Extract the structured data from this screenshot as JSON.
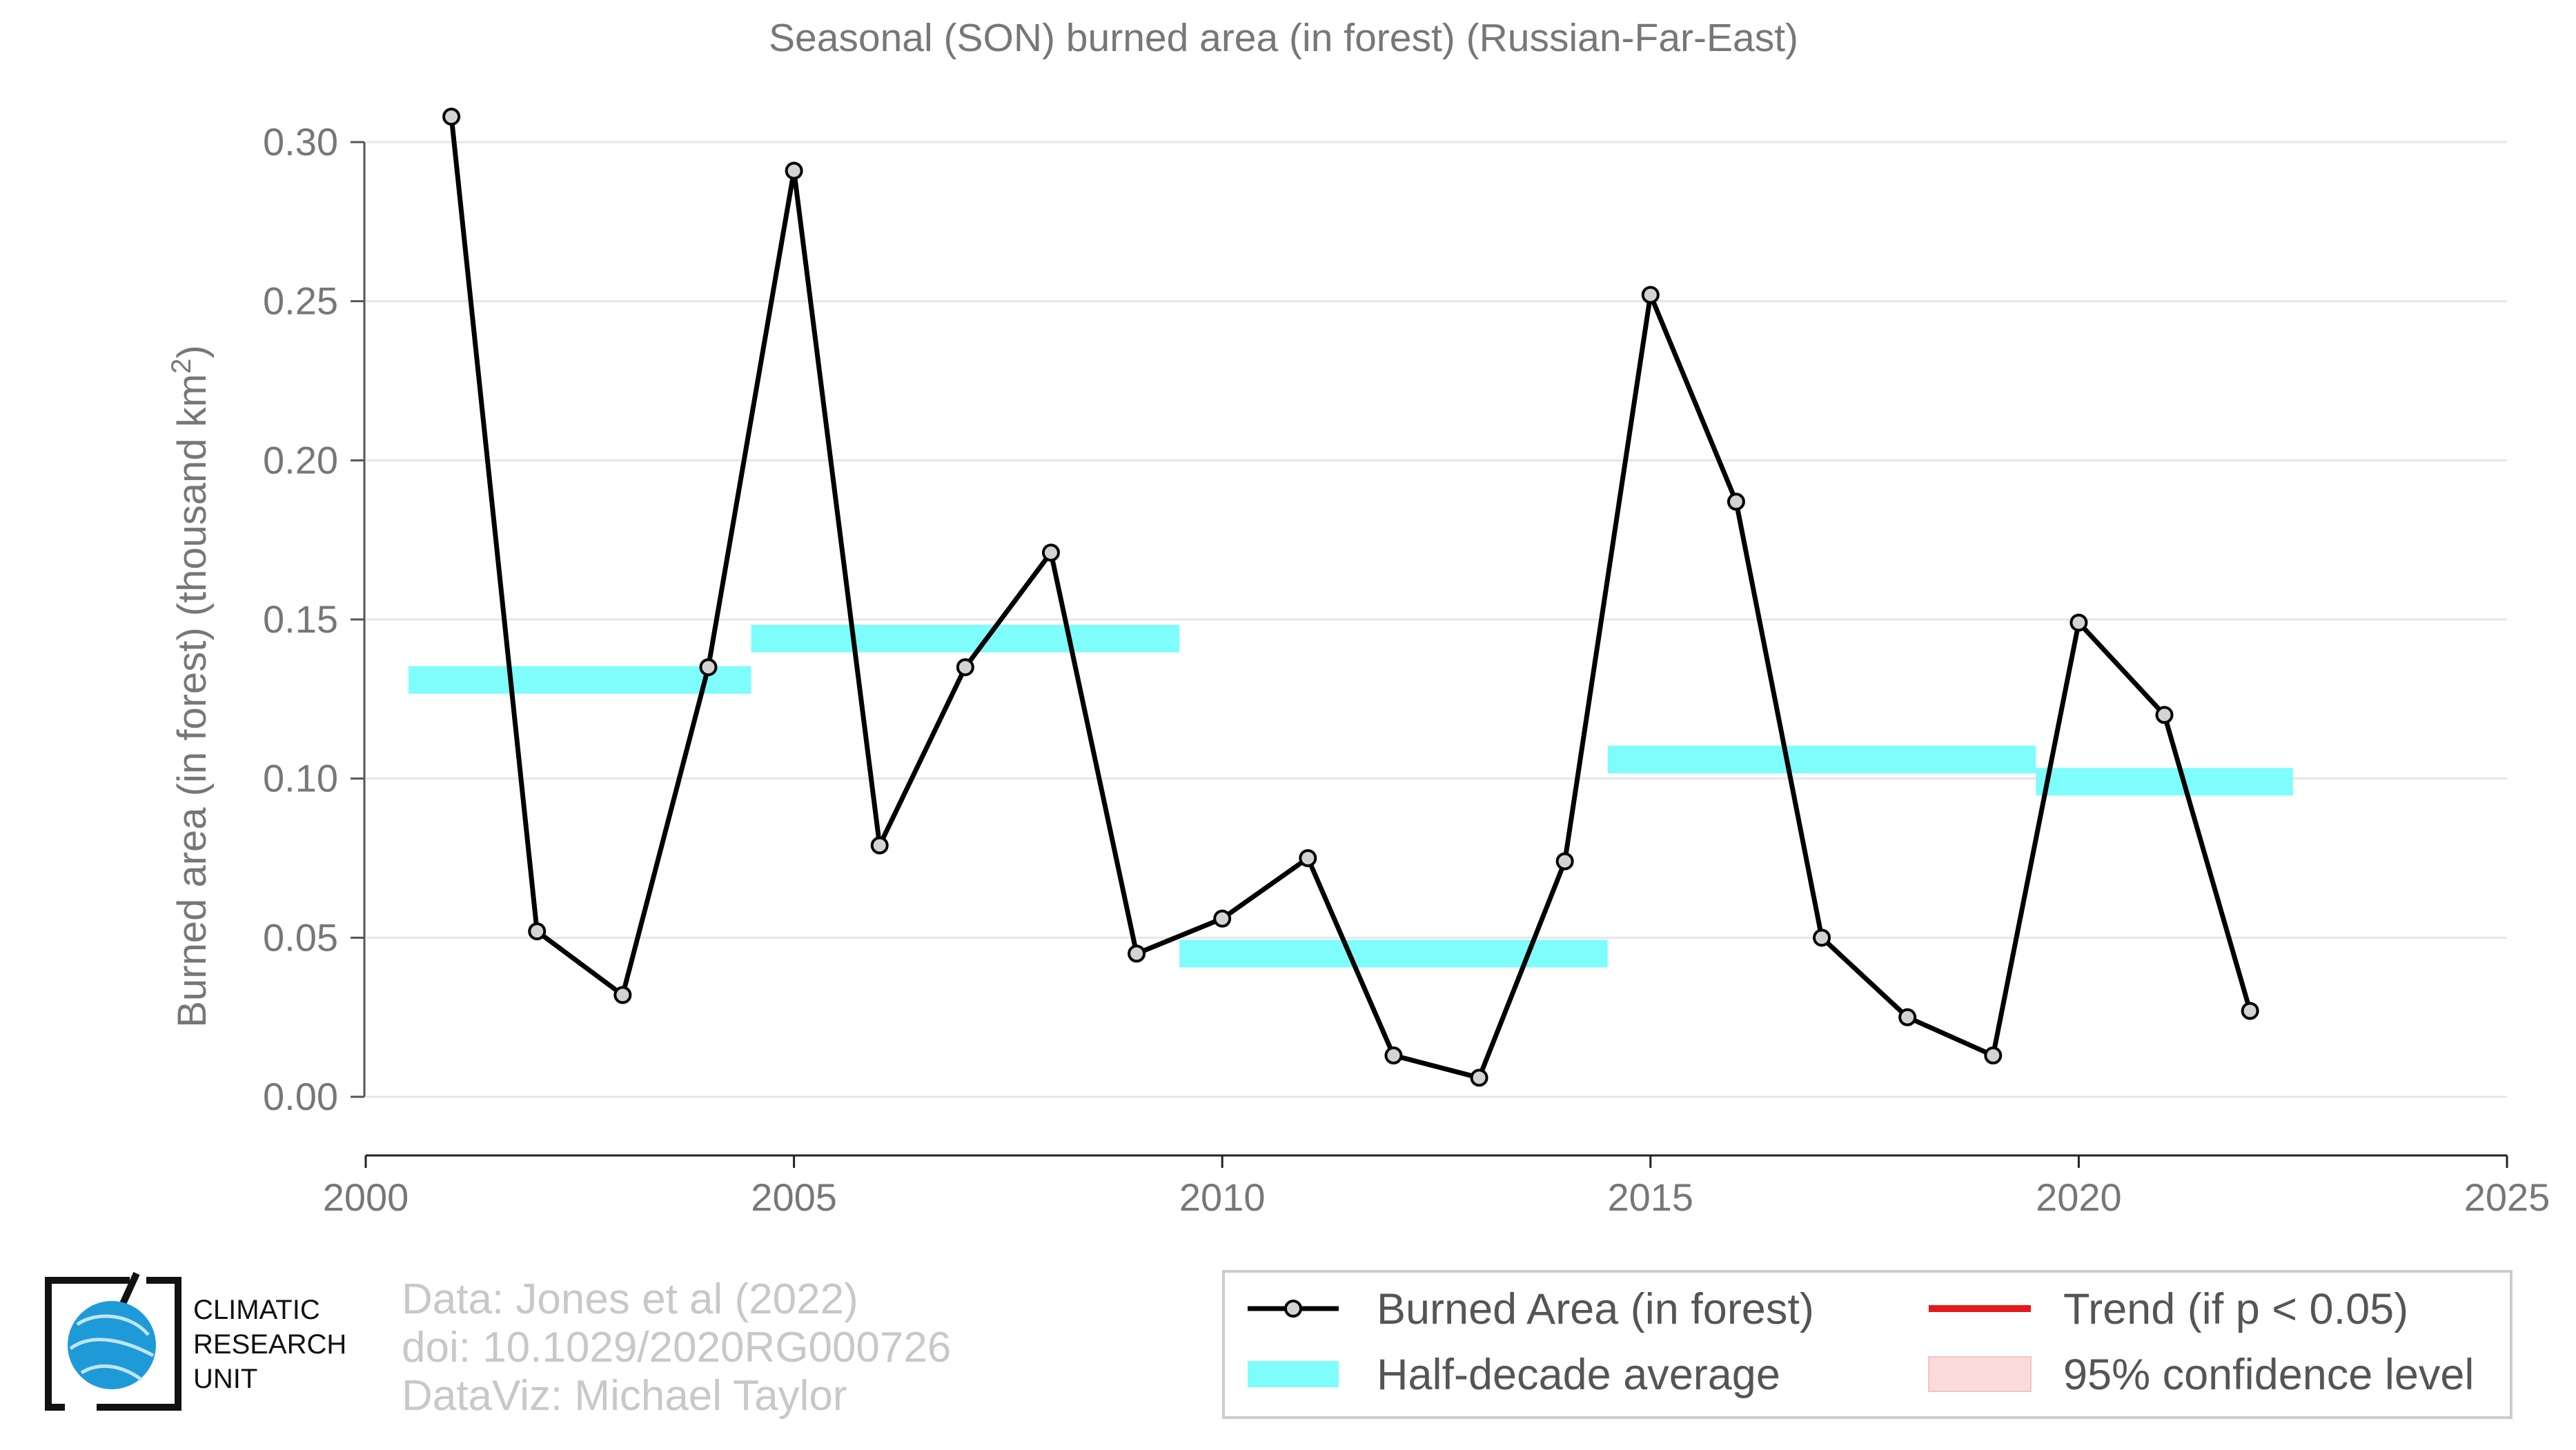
{
  "chart_data": {
    "type": "line",
    "title": "Seasonal (SON) burned area (in forest) (Russian-Far-East)",
    "ylabel": "Burned area (in forest) (thousand km",
    "ylabel_sup": "2",
    "ylabel_end": ")",
    "xlabel": "",
    "xlim": [
      2000,
      2025
    ],
    "ylim": [
      0.0,
      0.3
    ],
    "x_ticks": [
      2000,
      2005,
      2010,
      2015,
      2020,
      2025
    ],
    "y_ticks": [
      0.0,
      0.05,
      0.1,
      0.15,
      0.2,
      0.25,
      0.3
    ],
    "y_tick_labels": [
      "0.00",
      "0.05",
      "0.10",
      "0.15",
      "0.20",
      "0.25",
      "0.30"
    ],
    "grid": "horizontal",
    "series": [
      {
        "name": "Burned Area (in forest)",
        "color": "#000000",
        "x": [
          2001,
          2002,
          2003,
          2004,
          2005,
          2006,
          2007,
          2008,
          2009,
          2010,
          2011,
          2012,
          2013,
          2014,
          2015,
          2016,
          2017,
          2018,
          2019,
          2020,
          2021,
          2022
        ],
        "y": [
          0.308,
          0.052,
          0.032,
          0.135,
          0.291,
          0.079,
          0.135,
          0.171,
          0.045,
          0.056,
          0.075,
          0.013,
          0.006,
          0.074,
          0.252,
          0.187,
          0.05,
          0.025,
          0.013,
          0.149,
          0.12,
          0.027
        ]
      }
    ],
    "half_decade_average": {
      "name": "Half-decade average",
      "color": "#7ffcfc",
      "segments": [
        {
          "x_start": 2000.5,
          "x_end": 2004.5,
          "y": 0.131
        },
        {
          "x_start": 2004.5,
          "x_end": 2009.5,
          "y": 0.144
        },
        {
          "x_start": 2009.5,
          "x_end": 2014.5,
          "y": 0.045
        },
        {
          "x_start": 2014.5,
          "x_end": 2019.5,
          "y": 0.106
        },
        {
          "x_start": 2019.5,
          "x_end": 2022.5,
          "y": 0.099
        }
      ]
    },
    "legend": {
      "placement": "bottom-right",
      "items": [
        {
          "label": "Burned Area (in forest)",
          "kind": "line-point",
          "color": "#000000"
        },
        {
          "label": "Trend (if p < 0.05)",
          "kind": "line",
          "color": "#e31a1c"
        },
        {
          "label": "Half-decade average",
          "kind": "band",
          "color": "#7ffcfc"
        },
        {
          "label": "95% confidence level",
          "kind": "band",
          "color": "#fbdada"
        }
      ]
    }
  },
  "credits": {
    "line1": "Data: Jones et al (2022)",
    "line2": "doi: 10.1029/2020RG000726",
    "line3": "DataViz: Michael Taylor"
  },
  "logo": {
    "line1": "CLIMATIC",
    "line2": "RESEARCH",
    "line3": "UNIT"
  }
}
